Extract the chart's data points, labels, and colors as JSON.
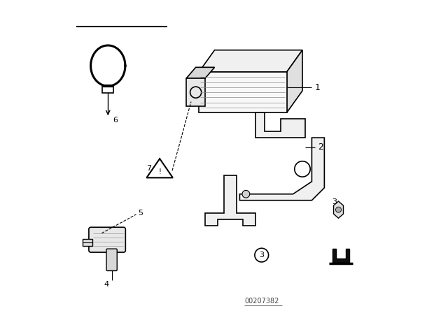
{
  "bg_color": "#ffffff",
  "line_color": "#000000",
  "fig_width": 6.4,
  "fig_height": 4.48,
  "dpi": 100,
  "diagram_id": "00207382"
}
